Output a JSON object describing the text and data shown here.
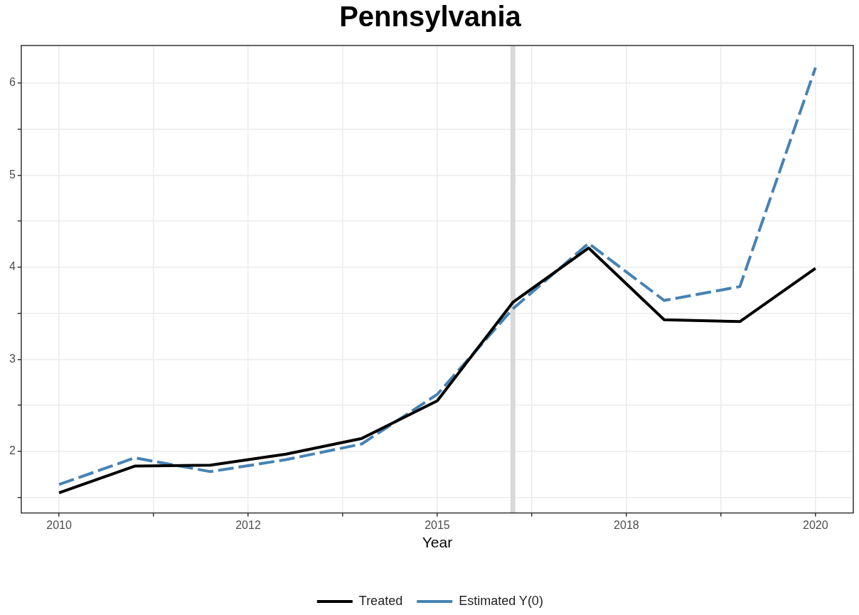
{
  "chart_data": {
    "type": "line",
    "title": "Pennsylvania",
    "xlabel": "Year",
    "x": [
      2010,
      2011,
      2012,
      2013,
      2014,
      2015,
      2016,
      2017,
      2018,
      2019,
      2020
    ],
    "series": [
      {
        "name": "Treated",
        "color": "#000000",
        "line_style": "solid",
        "values": [
          1.55,
          1.84,
          1.85,
          1.97,
          2.14,
          2.55,
          3.62,
          4.21,
          3.43,
          3.41,
          3.99
        ]
      },
      {
        "name": "Estimated Y(0)",
        "color": "#4682b4",
        "line_style": "dashed",
        "values": [
          1.64,
          1.93,
          1.78,
          1.91,
          2.08,
          2.62,
          3.55,
          4.26,
          3.64,
          3.79,
          6.17
        ]
      }
    ],
    "xlim": [
      2009.5,
      2020.5
    ],
    "xticks": [
      2010,
      {
        "value": 2011.25,
        "label": null
      },
      {
        "value": 2012.5,
        "label": "2012"
      },
      {
        "value": 2013.75,
        "label": null
      },
      2015,
      {
        "value": 2016.25,
        "label": null
      },
      {
        "value": 2017.5,
        "label": "2018"
      },
      {
        "value": 2018.75,
        "label": null
      },
      2020
    ],
    "ylim": [
      1.33,
      6.41
    ],
    "yticks": [
      {
        "value": 1.5,
        "label": null
      },
      2,
      {
        "value": 2.5,
        "label": null
      },
      3,
      {
        "value": 3.5,
        "label": null
      },
      4,
      {
        "value": 4.5,
        "label": null
      },
      5,
      {
        "value": 5.5,
        "label": null
      },
      6
    ],
    "ref_lines": [
      {
        "axis": "x",
        "value": 2016,
        "color": "#d9d9d9"
      }
    ],
    "grid": true,
    "legend": "bottom",
    "marker": "none"
  }
}
